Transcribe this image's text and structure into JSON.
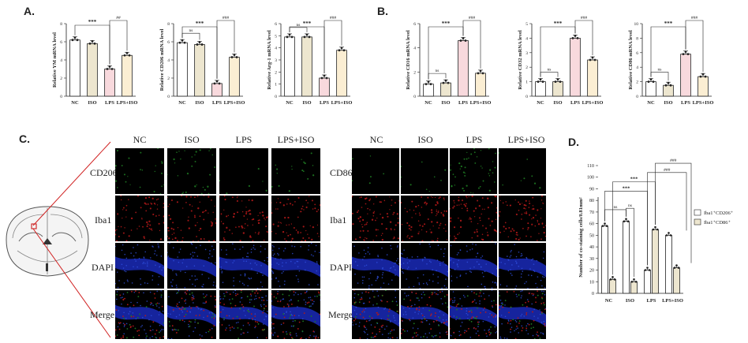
{
  "panels": {
    "A": {
      "letter": "A."
    },
    "B": {
      "letter": "B."
    },
    "C": {
      "letter": "C."
    },
    "D": {
      "letter": "D."
    }
  },
  "colors": {
    "nc": "#ffffff",
    "iso": "#ede6cf",
    "lps": "#f8d9dd",
    "lps_iso": "#fbeed3",
    "iba1_cd206": "#ffffff",
    "iba1_cd86": "#ede6cf",
    "green_channel": "#1e7a22",
    "red_channel": "#b01818",
    "blue_channel": "#1a2ab8"
  },
  "micro": {
    "columns": [
      "NC",
      "ISO",
      "LPS",
      "LPS+ISO"
    ],
    "left_rows": [
      "CD206",
      "Iba1",
      "DAPI",
      "Merge"
    ],
    "right_rows": [
      "CD86",
      "Iba1",
      "DAPI",
      "Merge"
    ]
  },
  "chart_data": [
    {
      "id": "ym1",
      "type": "bar",
      "categories": [
        "NC",
        "ISO",
        "LPS",
        "LPS+ISO"
      ],
      "values": [
        6.2,
        5.8,
        3.0,
        4.5
      ],
      "ylabel": "Relative YM mRNA level",
      "ylim": [
        0,
        8
      ],
      "yticks": [
        0,
        2,
        4,
        6,
        8
      ],
      "annotations": [
        "***",
        "##"
      ]
    },
    {
      "id": "cd206",
      "type": "bar",
      "categories": [
        "NC",
        "ISO",
        "LPS",
        "LPS+ISO"
      ],
      "values": [
        5.9,
        5.7,
        1.4,
        4.3
      ],
      "ylabel": "Relative CD206 mRNA level",
      "ylim": [
        0,
        8
      ],
      "yticks": [
        0,
        2,
        4,
        6,
        8
      ],
      "annotations": [
        "ns",
        "***",
        "###"
      ]
    },
    {
      "id": "arg1",
      "type": "bar",
      "categories": [
        "NC",
        "ISO",
        "LPS",
        "LPS+ISO"
      ],
      "values": [
        4.9,
        4.9,
        1.5,
        3.8
      ],
      "ylabel": "Relative Arg-1 mRNA level",
      "ylim": [
        0,
        6
      ],
      "yticks": [
        0,
        1,
        2,
        3,
        4,
        5,
        6
      ],
      "annotations": [
        "ns",
        "***",
        "###"
      ]
    },
    {
      "id": "cd16",
      "type": "bar",
      "categories": [
        "NC",
        "ISO",
        "LPS",
        "LPS+ISO"
      ],
      "values": [
        1.0,
        1.1,
        4.6,
        1.9
      ],
      "ylabel": "Relative CD16 mRNA level",
      "ylim": [
        0,
        6
      ],
      "yticks": [
        0,
        2,
        4,
        6
      ],
      "annotations": [
        "ns",
        "***",
        "###"
      ]
    },
    {
      "id": "cd32",
      "type": "bar",
      "categories": [
        "NC",
        "ISO",
        "LPS",
        "LPS+ISO"
      ],
      "values": [
        1.0,
        1.0,
        4.0,
        2.5
      ],
      "ylabel": "Relative CD32 mRNA level",
      "ylim": [
        0,
        5
      ],
      "yticks": [
        0,
        1,
        2,
        3,
        4,
        5
      ],
      "annotations": [
        "ns",
        "***",
        "###"
      ]
    },
    {
      "id": "cd86",
      "type": "bar",
      "categories": [
        "NC",
        "ISO",
        "LPS",
        "LPS+ISO"
      ],
      "values": [
        2.0,
        1.5,
        5.8,
        2.7
      ],
      "ylabel": "Relative CD86 mRNA level",
      "ylim": [
        0,
        10
      ],
      "yticks": [
        0,
        2,
        4,
        6,
        8,
        10
      ],
      "annotations": [
        "ns",
        "***",
        "###"
      ]
    },
    {
      "id": "costain",
      "type": "bar",
      "categories": [
        "NC",
        "ISO",
        "LPS",
        "LPS+ISO"
      ],
      "series": [
        {
          "name": "Iba1⁺CD206⁺",
          "values": [
            58,
            62,
            20,
            50
          ]
        },
        {
          "name": "Iba1⁺CD86⁺",
          "values": [
            12,
            10,
            55,
            22
          ]
        }
      ],
      "ylabel": "Number of co-staining cells/0.81mm²",
      "ylim": [
        0,
        110
      ],
      "yticks": [
        0,
        10,
        20,
        30,
        40,
        50,
        60,
        70,
        80,
        90,
        100,
        110
      ],
      "legend": "right",
      "annotations": [
        "ns",
        "ns",
        "***",
        "***",
        "###",
        "###"
      ]
    }
  ]
}
